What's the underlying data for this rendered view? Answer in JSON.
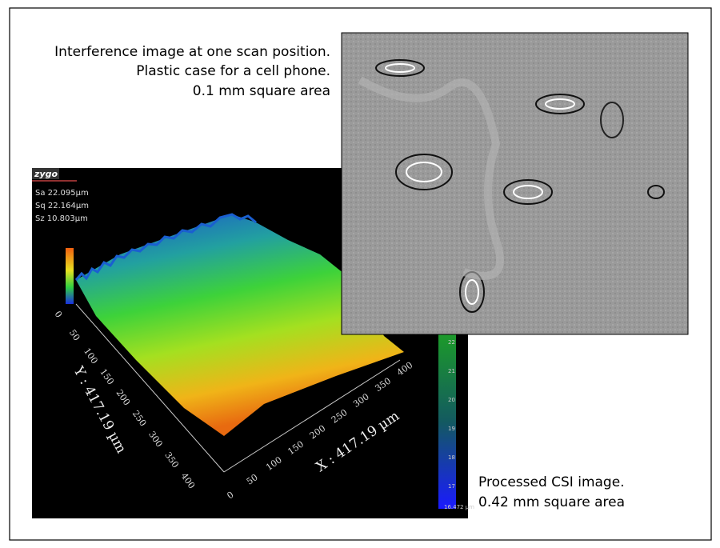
{
  "interference_caption": [
    "Interference image at one scan position.",
    "Plastic case for a cell phone.",
    "0.1 mm square area"
  ],
  "csi_caption": [
    "Processed CSI image.",
    "0.42 mm square area"
  ],
  "csi_image": {
    "logo": "zygo",
    "stats": [
      "Sa 22.095µm",
      "Sq 22.164µm",
      "Sz 10.803µm"
    ],
    "y_axis": {
      "label": "Y : 417.19 µm",
      "ticks": [
        0,
        50,
        100,
        150,
        200,
        250,
        300,
        350,
        400
      ]
    },
    "x_axis": {
      "label": "X : 417.19 µm",
      "ticks": [
        0,
        50,
        100,
        150,
        200,
        250,
        300,
        350,
        400
      ]
    },
    "colorbar": {
      "ticks": [
        22,
        21,
        20,
        19,
        18,
        17
      ],
      "min_label": "16.472 µm"
    }
  }
}
